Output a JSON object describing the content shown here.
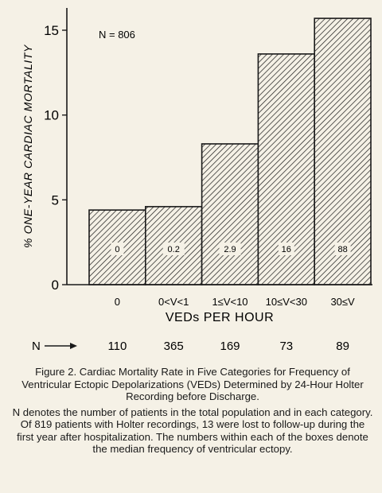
{
  "chart_data": {
    "type": "bar",
    "categories": [
      "0",
      "0<V<1",
      "1≤V<10",
      "10≤V<30",
      "30≤V"
    ],
    "values": [
      4.4,
      4.6,
      8.3,
      13.6,
      15.7
    ],
    "bar_labels": [
      "0",
      "0.2",
      "2.9",
      "16",
      "88"
    ],
    "n_values": [
      "110",
      "365",
      "169",
      "73",
      "89"
    ],
    "n_row_label": "N",
    "n_annotation": "N = 806",
    "xlabel": "VEDs PER HOUR",
    "ylabel": "% ONE-YEAR CARDIAC MORTALITY",
    "ylim": [
      0,
      16.5
    ],
    "yticks": [
      0,
      5,
      10,
      15
    ],
    "grid": false,
    "bar_fill": "diagonal hatch"
  },
  "caption": {
    "title": "Figure 2. Cardiac Mortality Rate in Five Categories for Frequency of Ventricular Ectopic Depolarizations (VEDs) Determined by 24-Hour Holter Recording before Discharge.",
    "note": "N denotes the number of patients in the total population and in each category. Of 819 patients with Holter recordings, 13 were lost to follow-up during the first year after hospitalization. The numbers within each of the boxes denote the median frequency of ventricular ectopy."
  }
}
